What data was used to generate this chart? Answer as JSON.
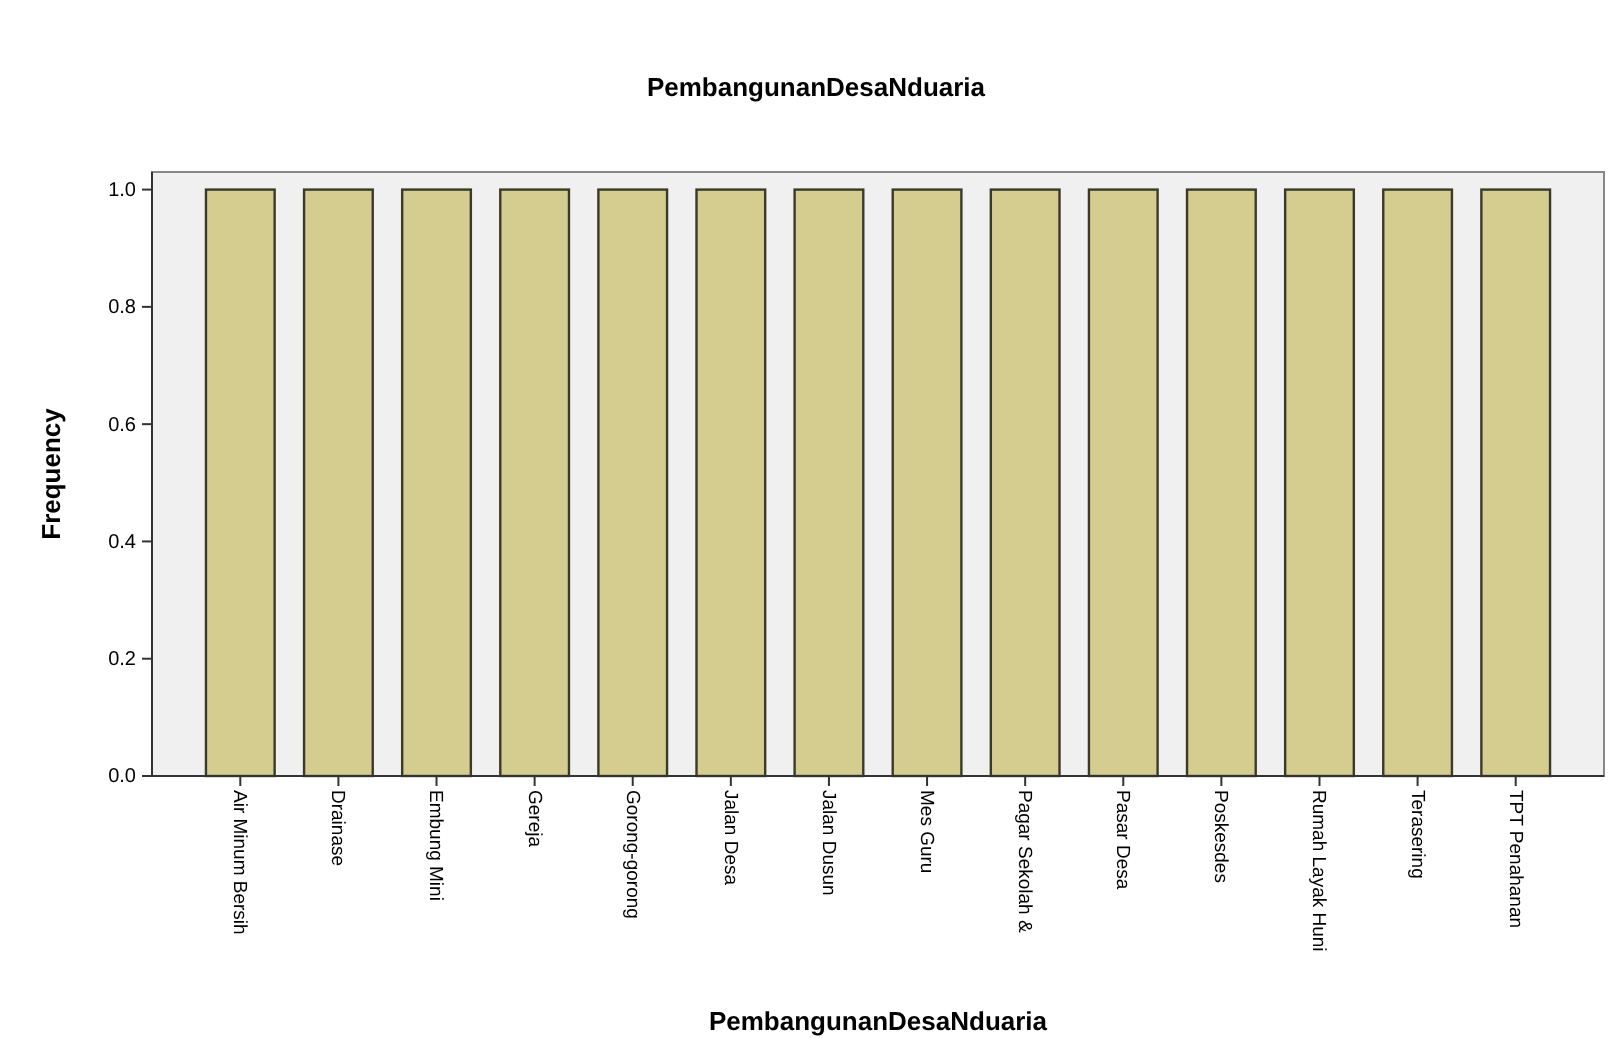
{
  "chart_data": {
    "type": "bar",
    "title": "PembangunanDesaNduaria",
    "xlabel": "PembangunanDesaNduaria",
    "ylabel": "Frequency",
    "categories": [
      "Air Minum Bersih",
      "Drainase",
      "Embung Mini",
      "Gereja",
      "Gorong-gorong",
      "Jalan Desa",
      "Jalan Dusun",
      "Mes Guru",
      "Pagar Sekolah &",
      "Pasar Desa",
      "Poskesdes",
      "Rumah Layak Huni",
      "Terasering",
      "TPT Penahanan"
    ],
    "values": [
      1,
      1,
      1,
      1,
      1,
      1,
      1,
      1,
      1,
      1,
      1,
      1,
      1,
      1
    ],
    "color": "#d4cd8f",
    "ylim": [
      0,
      1.03
    ],
    "yticks": [
      {
        "value": 0,
        "label": "0.0"
      },
      {
        "value": 0.2,
        "label": "0.2"
      },
      {
        "value": 0.4,
        "label": "0.4"
      },
      {
        "value": 0.6,
        "label": "0.6"
      },
      {
        "value": 0.8,
        "label": "0.8"
      },
      {
        "value": 1,
        "label": "1.0"
      }
    ],
    "grid": false
  }
}
